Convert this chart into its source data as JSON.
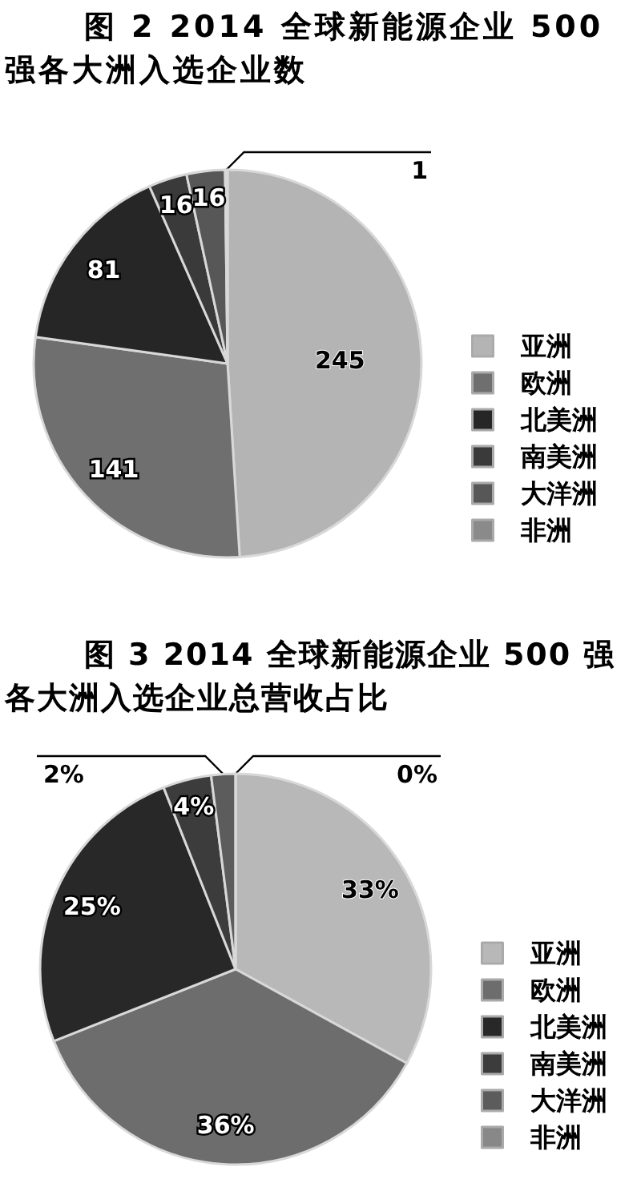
{
  "chart_data": [
    {
      "type": "pie",
      "title": "图 2 2014 全球新能源企业 500 强各大洲入选企业数",
      "categories": [
        "亚洲",
        "欧洲",
        "北美洲",
        "南美洲",
        "大洋洲",
        "非洲"
      ],
      "values": [
        245,
        141,
        81,
        16,
        16,
        1
      ],
      "colors": [
        "#b4b4b4",
        "#6f6f6f",
        "#262626",
        "#3a3a3a",
        "#575757",
        "#8a8a8a"
      ],
      "data_labels": true,
      "legend": "bottom right"
    },
    {
      "type": "pie",
      "title": "图 3 2014 全球新能源企业 500 强各大洲入选企业总营收占比",
      "categories": [
        "亚洲",
        "欧洲",
        "北美洲",
        "南美洲",
        "大洋洲",
        "非洲"
      ],
      "values": [
        33,
        36,
        25,
        4,
        2,
        0
      ],
      "value_labels": [
        "33%",
        "36%",
        "25%",
        "4%",
        "2%",
        "0%"
      ],
      "colors": [
        "#b8b8b8",
        "#6d6d6d",
        "#282828",
        "#3c3c3c",
        "#5c5c5c",
        "#888888"
      ],
      "legend": "bottom right"
    }
  ]
}
